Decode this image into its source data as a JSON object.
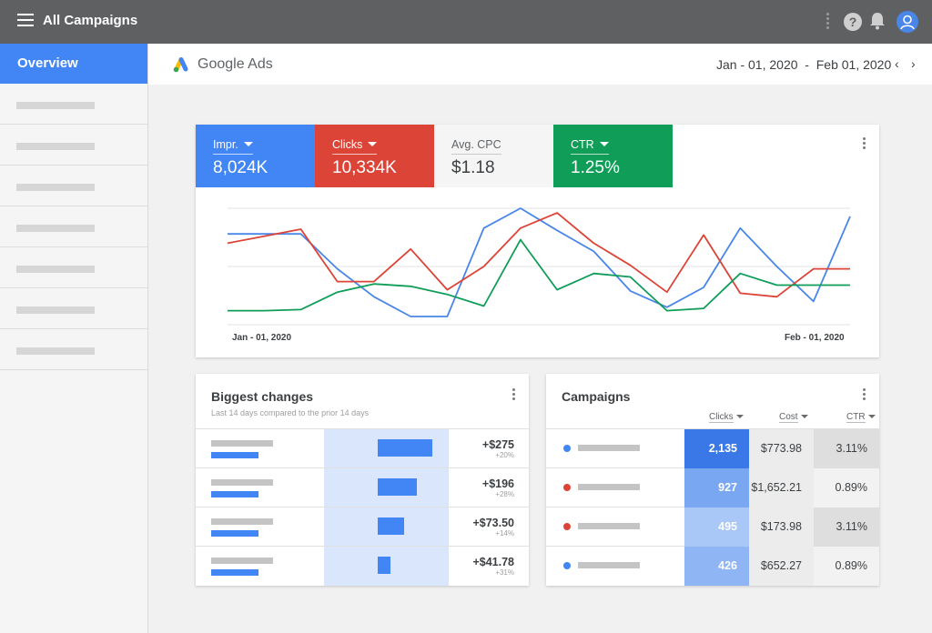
{
  "topbar": {
    "title": "All Campaigns",
    "icons": [
      "menu-icon",
      "more-vert-icon",
      "help-icon",
      "bell-icon",
      "account-icon"
    ],
    "help_glyph": "?"
  },
  "sidebar": {
    "active_label": "Overview",
    "placeholder_item_count": 7
  },
  "header": {
    "brand": "Google Ads",
    "date_range": "Jan - 01, 2020  -  Feb 01, 2020",
    "prev_glyph": "‹",
    "next_glyph": "›"
  },
  "metrics": [
    {
      "label": "Impr.",
      "value": "8,024K",
      "color": "#4285f4",
      "dropdown": true
    },
    {
      "label": "Clicks",
      "value": "10,334K",
      "color": "#db4437",
      "dropdown": true
    },
    {
      "label": "Avg. CPC",
      "value": "$1.18",
      "color": "#f5f5f5",
      "dropdown": false
    },
    {
      "label": "CTR",
      "value": "1.25%",
      "color": "#0f9d58",
      "dropdown": true
    }
  ],
  "chart_data": {
    "type": "line",
    "x_start_label": "Jan - 01, 2020",
    "x_end_label": "Feb - 01, 2020",
    "x": [
      0,
      1,
      2,
      3,
      4,
      5,
      6,
      7,
      8,
      9,
      10,
      11,
      12,
      13,
      14,
      15,
      16,
      17
    ],
    "ylim": [
      0,
      100
    ],
    "series": [
      {
        "color": "#4a86e8",
        "values": [
          78,
          78,
          78,
          48,
          24,
          7,
          7,
          83,
          100,
          81,
          63,
          29,
          15,
          32,
          83,
          50,
          20,
          93
        ]
      },
      {
        "color": "#db4437",
        "values": [
          70,
          76,
          82,
          37,
          37,
          65,
          30,
          50,
          83,
          96,
          70,
          51,
          28,
          77,
          27,
          24,
          48,
          48
        ]
      },
      {
        "color": "#0f9d58",
        "values": [
          12,
          12,
          13,
          28,
          35,
          33,
          26,
          16,
          73,
          30,
          44,
          41,
          12,
          14,
          44,
          34,
          34,
          34
        ]
      }
    ],
    "grid": true,
    "gridlines": 3
  },
  "biggest_changes": {
    "title": "Biggest changes",
    "subtitle": "Last 14 days compared to the prior 14 days",
    "rows": [
      {
        "value": "+$275",
        "pct": "+20%",
        "magnitude": 1.0
      },
      {
        "value": "+$196",
        "pct": "+28%",
        "magnitude": 0.71
      },
      {
        "value": "+$73.50",
        "pct": "+14%",
        "magnitude": 0.49
      },
      {
        "value": "+$41.78",
        "pct": "+31%",
        "magnitude": 0.23
      }
    ]
  },
  "campaigns": {
    "title": "Campaigns",
    "columns": [
      "Clicks",
      "Cost",
      "CTR"
    ],
    "rows": [
      {
        "dot_color": "#4285f4",
        "clicks": "2,135",
        "cost": "$773.98",
        "ctr": "3.11%",
        "clicks_bg": "#3b78e7",
        "ctr_bg": "#dedede"
      },
      {
        "dot_color": "#db4437",
        "clicks": "927",
        "cost": "$1,652.21",
        "ctr": "0.89%",
        "clicks_bg": "#7aa7f2",
        "ctr_bg": "#f2f2f2"
      },
      {
        "dot_color": "#db4437",
        "clicks": "495",
        "cost": "$173.98",
        "ctr": "3.11%",
        "clicks_bg": "#a9c7f7",
        "ctr_bg": "#dedede"
      },
      {
        "dot_color": "#4285f4",
        "clicks": "426",
        "cost": "$652.27",
        "ctr": "0.89%",
        "clicks_bg": "#8fb5f5",
        "ctr_bg": "#f2f2f2"
      }
    ]
  }
}
